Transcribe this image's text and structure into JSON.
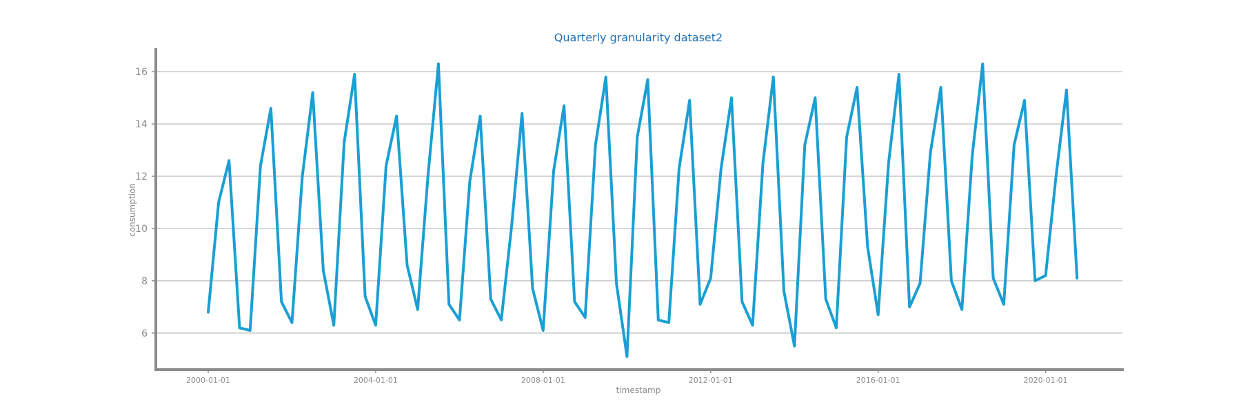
{
  "chart_data": {
    "type": "line",
    "title": "Quarterly granularity dataset2",
    "xlabel": "timestamp",
    "ylabel": "consumption",
    "grid": "horizontal",
    "xlim": [
      "1998-10-01",
      "2021-11-01"
    ],
    "ylim": [
      4.6,
      16.9
    ],
    "xticks": [
      "2000-01-01",
      "2004-01-01",
      "2008-01-01",
      "2012-01-01",
      "2016-01-01",
      "2020-01-01"
    ],
    "yticks": [
      6,
      8,
      10,
      12,
      14,
      16
    ],
    "series": [
      {
        "color": "#1a9fd4",
        "x": [
          "2000-01-01",
          "2000-04-01",
          "2000-07-01",
          "2000-10-01",
          "2001-01-01",
          "2001-04-01",
          "2001-07-01",
          "2001-10-01",
          "2002-01-01",
          "2002-04-01",
          "2002-07-01",
          "2002-10-01",
          "2003-01-01",
          "2003-04-01",
          "2003-07-01",
          "2003-10-01",
          "2004-01-01",
          "2004-04-01",
          "2004-07-01",
          "2004-10-01",
          "2005-01-01",
          "2005-04-01",
          "2005-07-01",
          "2005-10-01",
          "2006-01-01",
          "2006-04-01",
          "2006-07-01",
          "2006-10-01",
          "2007-01-01",
          "2007-04-01",
          "2007-07-01",
          "2007-10-01",
          "2008-01-01",
          "2008-04-01",
          "2008-07-01",
          "2008-10-01",
          "2009-01-01",
          "2009-04-01",
          "2009-07-01",
          "2009-10-01",
          "2010-01-01",
          "2010-04-01",
          "2010-07-01",
          "2010-10-01",
          "2011-01-01",
          "2011-04-01",
          "2011-07-01",
          "2011-10-01",
          "2012-01-01",
          "2012-04-01",
          "2012-07-01",
          "2012-10-01",
          "2013-01-01",
          "2013-04-01",
          "2013-07-01",
          "2013-10-01",
          "2014-01-01",
          "2014-04-01",
          "2014-07-01",
          "2014-10-01",
          "2015-01-01",
          "2015-04-01",
          "2015-07-01",
          "2015-10-01",
          "2016-01-01",
          "2016-04-01",
          "2016-07-01",
          "2016-10-01",
          "2017-01-01",
          "2017-04-01",
          "2017-07-01",
          "2017-10-01",
          "2018-01-01",
          "2018-04-01",
          "2018-07-01",
          "2018-10-01",
          "2019-01-01",
          "2019-04-01",
          "2019-07-01",
          "2019-10-01",
          "2020-01-01",
          "2020-04-01",
          "2020-07-01",
          "2020-10-01"
        ],
        "values": [
          6.8,
          11.0,
          12.6,
          6.2,
          6.1,
          12.4,
          14.6,
          7.2,
          6.4,
          12.0,
          15.2,
          8.4,
          6.3,
          13.3,
          15.9,
          7.4,
          6.3,
          12.4,
          14.3,
          8.6,
          6.9,
          12.0,
          16.3,
          7.1,
          6.5,
          11.8,
          14.3,
          7.3,
          6.5,
          10.1,
          14.4,
          7.7,
          6.1,
          12.2,
          14.7,
          7.2,
          6.6,
          13.2,
          15.8,
          7.9,
          5.1,
          13.5,
          15.7,
          6.5,
          6.4,
          12.3,
          14.9,
          7.1,
          8.1,
          12.3,
          15.0,
          7.2,
          6.3,
          12.5,
          15.8,
          7.6,
          5.5,
          13.2,
          15.0,
          7.3,
          6.2,
          13.5,
          15.4,
          9.3,
          6.7,
          12.5,
          15.9,
          7.0,
          7.9,
          12.9,
          15.4,
          8.0,
          6.9,
          12.8,
          16.3,
          8.1,
          7.1,
          13.2,
          14.9,
          8.0,
          8.2,
          12.0,
          15.3,
          8.1
        ]
      }
    ]
  }
}
